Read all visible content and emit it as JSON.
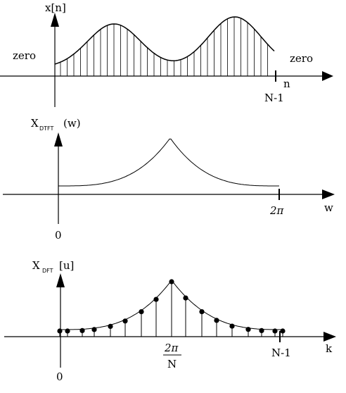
{
  "panels": {
    "signal": {
      "ylabel": "x[n]",
      "left_note": "zero",
      "right_note": "zero",
      "axis_var": "n",
      "end_tick": "N-1"
    },
    "dtft": {
      "ylabel_main": "X",
      "ylabel_sub": "DTFT",
      "ylabel_arg": "(w)",
      "axis_var": "w",
      "origin": "0",
      "period_tick": "2π"
    },
    "dft": {
      "ylabel_main": "X",
      "ylabel_sub": "DFT",
      "ylabel_arg": "[u]",
      "axis_var": "k",
      "origin": "0",
      "mid_tick_num": "2π",
      "mid_tick_den": "N",
      "end_tick": "N-1"
    }
  },
  "style": {
    "stroke": "#000000",
    "background": "#ffffff"
  }
}
